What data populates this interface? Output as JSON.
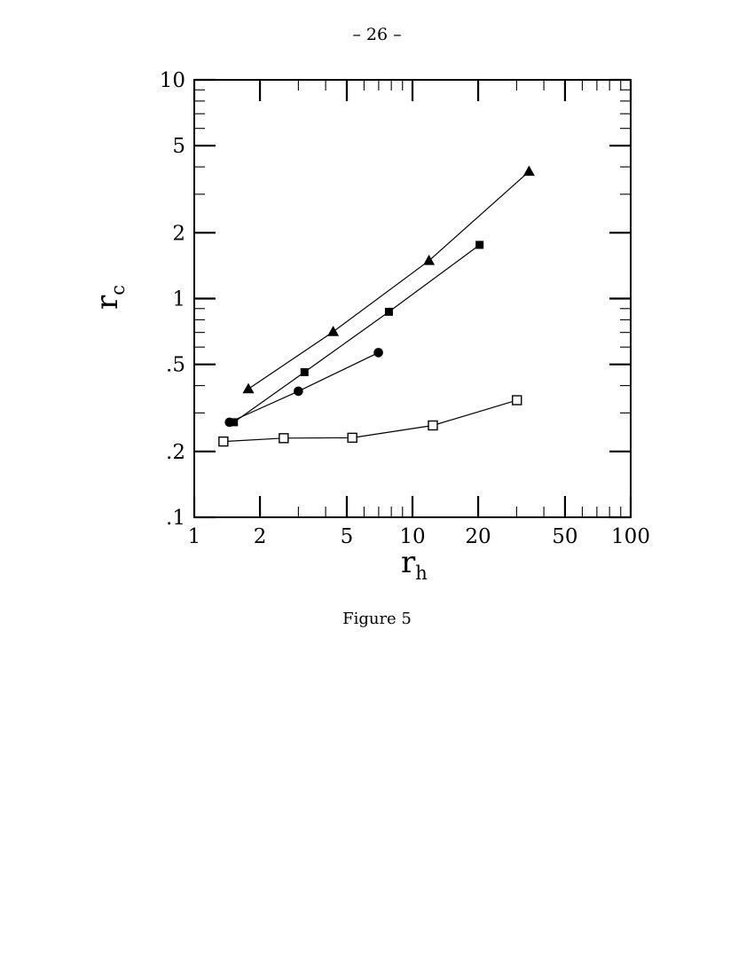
{
  "page": {
    "header": "– 26 –",
    "caption": "Figure 5",
    "background_color": "#ffffff",
    "ink_color": "#000000"
  },
  "chart_data": {
    "type": "line",
    "title": "",
    "xlabel": "r",
    "xlabel_sub": "h",
    "ylabel": "r",
    "ylabel_sub": "c",
    "x_scale": "log",
    "y_scale": "log",
    "xlim": [
      1,
      100
    ],
    "ylim": [
      0.1,
      10
    ],
    "grid": false,
    "legend": false,
    "x_major_ticks": [
      1,
      2,
      5,
      10,
      20,
      50,
      100
    ],
    "x_major_labels": [
      "1",
      "2",
      "5",
      "10",
      "20",
      "50",
      "100"
    ],
    "x_minor_ticks": [
      3,
      4,
      6,
      7,
      8,
      9,
      30,
      40,
      60,
      70,
      80,
      90
    ],
    "y_major_ticks": [
      10,
      5,
      2,
      1,
      0.5,
      0.2,
      0.1
    ],
    "y_major_labels": [
      "10",
      "5",
      "2",
      "1",
      ".5",
      ".2",
      ".1"
    ],
    "y_minor_ticks": [
      9,
      8,
      7,
      6,
      4,
      3,
      0.9,
      0.8,
      0.7,
      0.6,
      0.4,
      0.3
    ],
    "series": [
      {
        "name": "filled-triangle-series",
        "marker": "triangle-filled",
        "points": [
          [
            1.77,
            0.386
          ],
          [
            4.33,
            0.705
          ],
          [
            11.9,
            1.49
          ],
          [
            34.2,
            3.81
          ]
        ]
      },
      {
        "name": "filled-square-series",
        "marker": "square-filled",
        "points": [
          [
            1.52,
            0.272
          ],
          [
            3.2,
            0.461
          ],
          [
            7.8,
            0.87
          ],
          [
            20.3,
            1.76
          ]
        ]
      },
      {
        "name": "filled-circle-series",
        "marker": "circle-filled",
        "points": [
          [
            1.45,
            0.272
          ],
          [
            3.0,
            0.377
          ],
          [
            6.98,
            0.566
          ]
        ]
      },
      {
        "name": "open-square-series",
        "marker": "square-open",
        "points": [
          [
            1.36,
            0.222
          ],
          [
            2.57,
            0.23
          ],
          [
            5.3,
            0.231
          ],
          [
            12.4,
            0.263
          ],
          [
            30.1,
            0.343
          ]
        ]
      }
    ]
  }
}
